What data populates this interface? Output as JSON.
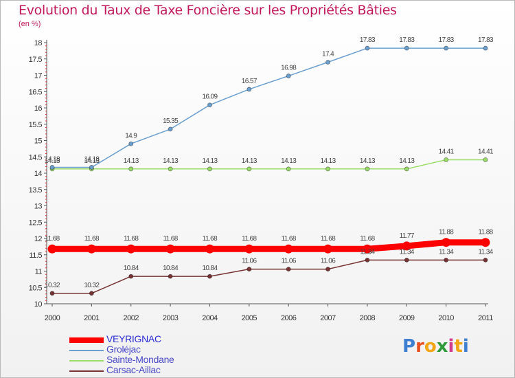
{
  "header": {
    "title": "Evolution du Taux de Taxe Foncière sur les Propriétés Bâties",
    "unit": "(en %)"
  },
  "chart_data": {
    "type": "line",
    "title": "Evolution du Taux de Taxe Foncière sur les Propriétés Bâties",
    "ylabel": "(en %)",
    "xlabel": "",
    "x": [
      "2000",
      "2001",
      "2002",
      "2003",
      "2004",
      "2005",
      "2006",
      "2007",
      "2008",
      "2009",
      "2010",
      "2011"
    ],
    "ylim": [
      10,
      18
    ],
    "yticks": [
      "10",
      "10.5",
      "11",
      "11.5",
      "12",
      "12.5",
      "13",
      "13.5",
      "14",
      "14.5",
      "15",
      "15.5",
      "16",
      "16.5",
      "17",
      "17.5",
      "18"
    ],
    "grid": false,
    "legend_position": "bottom-left",
    "series": [
      {
        "name": "VEYRIGNAC",
        "color": "#ff0000",
        "values": [
          11.68,
          11.68,
          11.68,
          11.68,
          11.68,
          11.68,
          11.68,
          11.68,
          11.68,
          11.77,
          11.88,
          11.88
        ],
        "labels": [
          "11.68",
          "11.68",
          "11.68",
          "11.68",
          "11.68",
          "11.68",
          "11.68",
          "11.68",
          "11.68",
          "11.77",
          "11.88",
          "11.88"
        ]
      },
      {
        "name": "Groléjac",
        "color": "#6a9fd0",
        "values": [
          14.18,
          14.18,
          14.9,
          15.35,
          16.09,
          16.57,
          16.98,
          17.4,
          17.83,
          17.83,
          17.83,
          17.83
        ],
        "labels": [
          "14.18",
          "14.18",
          "14.9",
          "15.35",
          "16.09",
          "16.57",
          "16.98",
          "17.4",
          "17.83",
          "17.83",
          "17.83",
          "17.83"
        ]
      },
      {
        "name": "Sainte-Mondane",
        "color": "#99dd66",
        "values": [
          14.13,
          14.13,
          14.13,
          14.13,
          14.13,
          14.13,
          14.13,
          14.13,
          14.13,
          14.13,
          14.41,
          14.41
        ],
        "labels": [
          "14.13",
          "14.13",
          "14.13",
          "14.13",
          "14.13",
          "14.13",
          "14.13",
          "14.13",
          "14.13",
          "14.13",
          "14.41",
          "14.41"
        ]
      },
      {
        "name": "Carsac-Aillac",
        "color": "#773333",
        "values": [
          10.32,
          10.32,
          10.84,
          10.84,
          10.84,
          11.06,
          11.06,
          11.06,
          11.34,
          11.34,
          11.34,
          11.34
        ],
        "labels": [
          "10.32",
          "10.32",
          "10.84",
          "10.84",
          "10.84",
          "11.06",
          "11.06",
          "11.06",
          "11.34",
          "11.34",
          "11.34",
          "11.34"
        ]
      }
    ]
  },
  "logo": {
    "letters": [
      "P",
      "r",
      "o",
      "x",
      "i",
      "t",
      "i"
    ],
    "colors": [
      "#3f7fd0",
      "#e8501f",
      "#f2a614",
      "#2e9a3a",
      "#d23a8d",
      "#f2a614",
      "#3f7fd0"
    ]
  }
}
